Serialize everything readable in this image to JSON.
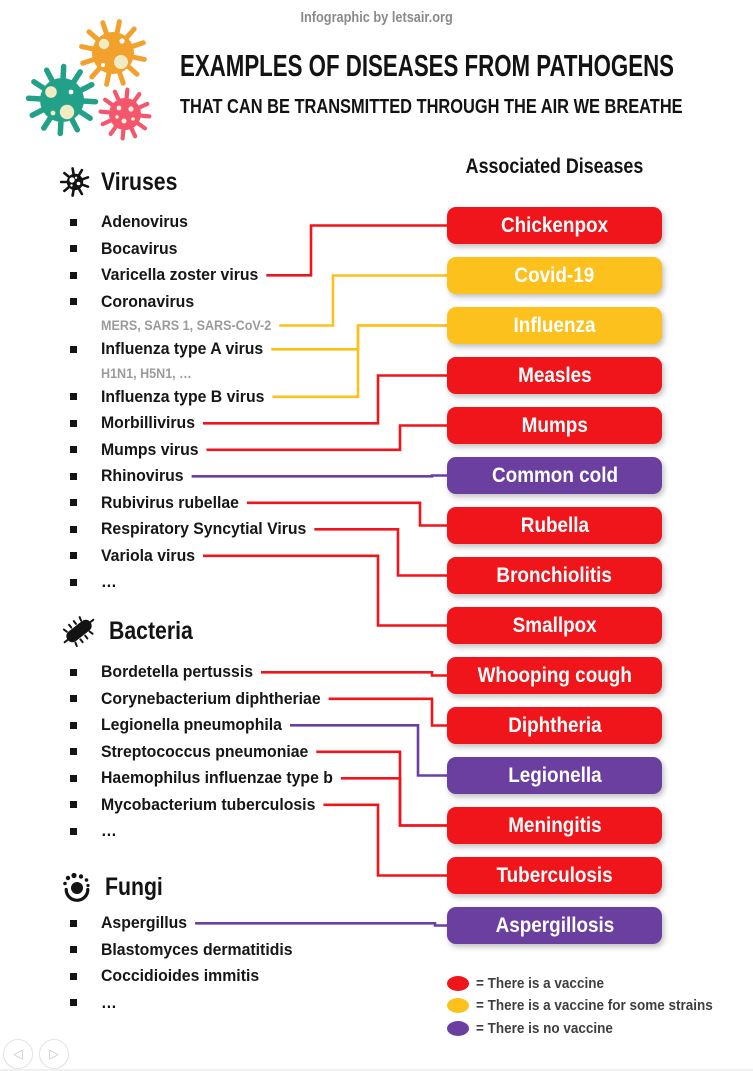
{
  "page": {
    "credit": "Infographic by letsair.org",
    "title": "EXAMPLES OF DISEASES FROM PATHOGENS",
    "subtitle": "THAT CAN BE TRANSMITTED THROUGH THE AIR WE BREATHE",
    "right_header": "Associated Diseases"
  },
  "colors": {
    "vaccine": "#F0141B",
    "some_strains": "#FCC11C",
    "no_vaccine": "#6B3FA0"
  },
  "sections": [
    {
      "id": "viruses",
      "label": "Viruses",
      "icon": "virus-icon",
      "items": [
        {
          "id": "adenovirus",
          "label": "Adenovirus"
        },
        {
          "id": "bocavirus",
          "label": "Bocavirus"
        },
        {
          "id": "varicella",
          "label": "Varicella zoster virus"
        },
        {
          "id": "coronavirus",
          "label": "Coronavirus",
          "sub": {
            "id": "coronavirus-sub",
            "label": "MERS, SARS 1, SARS-CoV-2"
          }
        },
        {
          "id": "influenza-a",
          "label": "Influenza type A virus",
          "sub": {
            "id": "influenza-a-sub",
            "label": "H1N1, H5N1, …"
          }
        },
        {
          "id": "influenza-b",
          "label": "Influenza type B virus"
        },
        {
          "id": "morbillivirus",
          "label": "Morbillivirus"
        },
        {
          "id": "mumps-virus",
          "label": "Mumps virus"
        },
        {
          "id": "rhinovirus",
          "label": "Rhinovirus"
        },
        {
          "id": "rubivirus",
          "label": "Rubivirus rubellae"
        },
        {
          "id": "rsv",
          "label": "Respiratory Syncytial Virus"
        },
        {
          "id": "variola",
          "label": "Variola virus"
        },
        {
          "id": "viruses-more",
          "label": "…"
        }
      ]
    },
    {
      "id": "bacteria",
      "label": "Bacteria",
      "icon": "bacteria-icon",
      "items": [
        {
          "id": "bordetella",
          "label": "Bordetella pertussis"
        },
        {
          "id": "corynebacterium",
          "label": "Corynebacterium diphtheriae"
        },
        {
          "id": "legionella-pneumophila",
          "label": "Legionella pneumophila"
        },
        {
          "id": "streptococcus",
          "label": "Streptococcus pneumoniae"
        },
        {
          "id": "haemophilus",
          "label": "Haemophilus influenzae type b"
        },
        {
          "id": "mycobacterium",
          "label": "Mycobacterium tuberculosis"
        },
        {
          "id": "bacteria-more",
          "label": "…"
        }
      ]
    },
    {
      "id": "fungi",
      "label": "Fungi",
      "icon": "fungi-icon",
      "items": [
        {
          "id": "aspergillus",
          "label": "Aspergillus"
        },
        {
          "id": "blastomyces",
          "label": "Blastomyces dermatitidis"
        },
        {
          "id": "coccidioides",
          "label": "Coccidioides immitis"
        },
        {
          "id": "fungi-more",
          "label": "…"
        }
      ]
    }
  ],
  "diseases": [
    {
      "id": "chickenpox",
      "label": "Chickenpox",
      "category": "vaccine"
    },
    {
      "id": "covid19",
      "label": "Covid-19",
      "category": "some_strains"
    },
    {
      "id": "influenza",
      "label": "Influenza",
      "category": "some_strains"
    },
    {
      "id": "measles",
      "label": "Measles",
      "category": "vaccine"
    },
    {
      "id": "mumps",
      "label": "Mumps",
      "category": "vaccine"
    },
    {
      "id": "common-cold",
      "label": "Common cold",
      "category": "no_vaccine"
    },
    {
      "id": "rubella",
      "label": "Rubella",
      "category": "vaccine"
    },
    {
      "id": "bronchiolitis",
      "label": "Bronchiolitis",
      "category": "vaccine"
    },
    {
      "id": "smallpox",
      "label": "Smallpox",
      "category": "vaccine"
    },
    {
      "id": "whooping-cough",
      "label": "Whooping cough",
      "category": "vaccine"
    },
    {
      "id": "diphtheria",
      "label": "Diphtheria",
      "category": "vaccine"
    },
    {
      "id": "legionella",
      "label": "Legionella",
      "category": "no_vaccine"
    },
    {
      "id": "meningitis",
      "label": "Meningitis",
      "category": "vaccine"
    },
    {
      "id": "tuberculosis",
      "label": "Tuberculosis",
      "category": "vaccine"
    },
    {
      "id": "aspergillosis",
      "label": "Aspergillosis",
      "category": "no_vaccine"
    }
  ],
  "connections": [
    {
      "from": "varicella",
      "to": "chickenpox",
      "color": "vaccine",
      "elbow": 311
    },
    {
      "from": "coronavirus-sub",
      "to": "covid19",
      "color": "some_strains",
      "elbow": 333
    },
    {
      "from": "influenza-a",
      "to": "influenza",
      "color": "some_strains",
      "elbow": 358
    },
    {
      "from": "influenza-b",
      "to": "influenza",
      "color": "some_strains",
      "elbow": 358
    },
    {
      "from": "morbillivirus",
      "to": "measles",
      "color": "vaccine",
      "elbow": 378
    },
    {
      "from": "mumps-virus",
      "to": "mumps",
      "color": "vaccine",
      "elbow": 400
    },
    {
      "from": "rhinovirus",
      "to": "common-cold",
      "color": "no_vaccine",
      "elbow": 432
    },
    {
      "from": "rubivirus",
      "to": "rubella",
      "color": "vaccine",
      "elbow": 420
    },
    {
      "from": "rsv",
      "to": "bronchiolitis",
      "color": "vaccine",
      "elbow": 398
    },
    {
      "from": "variola",
      "to": "smallpox",
      "color": "vaccine",
      "elbow": 378
    },
    {
      "from": "bordetella",
      "to": "whooping-cough",
      "color": "vaccine",
      "elbow": 432
    },
    {
      "from": "corynebacterium",
      "to": "diphtheria",
      "color": "vaccine",
      "elbow": 432
    },
    {
      "from": "legionella-pneumophila",
      "to": "legionella",
      "color": "no_vaccine",
      "elbow": 418
    },
    {
      "from": "streptococcus",
      "to": "meningitis",
      "color": "vaccine",
      "elbow": 400
    },
    {
      "from": "haemophilus",
      "to": "meningitis",
      "color": "vaccine",
      "elbow": 400
    },
    {
      "from": "mycobacterium",
      "to": "tuberculosis",
      "color": "vaccine",
      "elbow": 378
    },
    {
      "from": "aspergillus",
      "to": "aspergillosis",
      "color": "no_vaccine",
      "elbow": 435
    }
  ],
  "legend": [
    {
      "color": "vaccine",
      "label": "= There is a vaccine"
    },
    {
      "color": "some_strains",
      "label": "= There is a vaccine for some strains"
    },
    {
      "color": "no_vaccine",
      "label": "= There is no vaccine"
    }
  ],
  "nav": {
    "prev_icon": "◁",
    "next_icon": "▷"
  }
}
